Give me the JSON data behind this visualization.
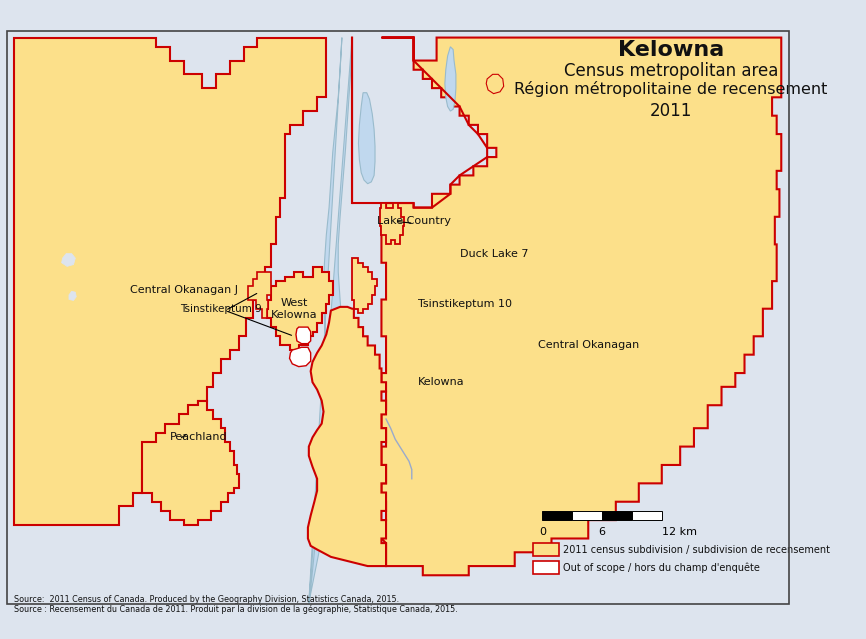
{
  "title_line1": "Kelowna",
  "title_line2": "Census metropolitan area",
  "title_line3": "Région métropolitaine de recensement",
  "title_line4": "2011",
  "background_color": "#dde4ee",
  "land_fill_yellow": "#fce08a",
  "water_color": "#c0d8ee",
  "border_color_red": "#cc0000",
  "out_of_scope_fill": "#ffffff",
  "source_line1": "Source:  2011 Census of Canada. Produced by the Geography Division, Statistics Canada, 2015.",
  "source_line2": "Source : Recensement du Canada de 2011. Produit par la division de la géographie, Statistique Canada, 2015.",
  "legend_label1": "2011 census subdivision / subdivision de recensement",
  "legend_label2": "Out of scope / hors du champ d'enquête"
}
